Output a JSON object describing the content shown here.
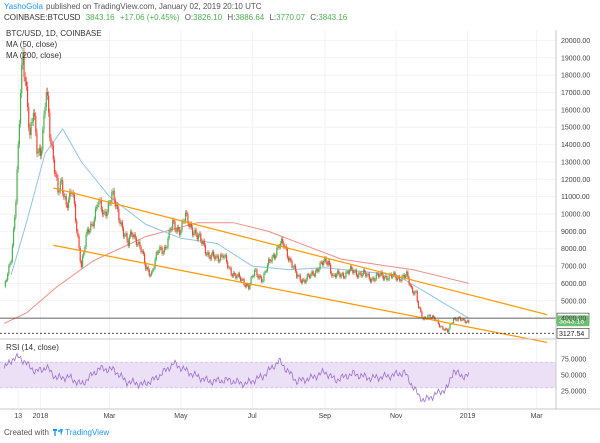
{
  "header": {
    "publisher": "YashoGola",
    "published_text": "published on TradingView.com, January 02, 2019 20:10 UTC",
    "symbol": "COINBASE:BTCUSD",
    "last": "3843.16",
    "change": "+17.06 (+0.45%)",
    "o_label": "O:",
    "o_val": "3826.10",
    "h_label": "H:",
    "h_val": "3886.64",
    "l_label": "L:",
    "l_val": "3770.07",
    "c_label": "C:",
    "c_val": "3843.16"
  },
  "legend": {
    "title": "BTC/USD, 1D, COINBASE",
    "ma50": "MA (50, close)",
    "ma200": "MA (200, close)",
    "rsi": "RSI (14, close)"
  },
  "footer": {
    "created_with": "Created with",
    "brand": "TradingView"
  },
  "colors": {
    "up": "#4caf50",
    "down": "#f44336",
    "ma50": "#90c5e8",
    "ma200": "#f28b82",
    "channel": "#ff9800",
    "rsi_line": "#9c6fce",
    "rsi_band": "#ece0f6",
    "price_marker": "#6cbf70",
    "level_line": "#333333"
  },
  "chart_data": {
    "type": "candlestick",
    "title": "BTC/USD, 1D, COINBASE",
    "x_ticks": [
      "13",
      "2018",
      "Mar",
      "May",
      "Jul",
      "Sep",
      "Nov",
      "2019",
      "Mar"
    ],
    "y_ticks": [
      4000,
      5000,
      6000,
      7000,
      8000,
      9000,
      10000,
      11000,
      12000,
      13000,
      14000,
      15000,
      16000,
      17000,
      18000,
      19000,
      20000
    ],
    "y_range": [
      2800,
      20600
    ],
    "price_markers": [
      {
        "label": "4002.88",
        "value": 4002.88,
        "style": "dark"
      },
      {
        "label": "3843.16",
        "value": 3843.16,
        "style": "green"
      },
      {
        "label": "3127.54",
        "value": 3127.54,
        "style": "dark"
      }
    ],
    "close_path": [
      [
        "2017-12-01",
        5600
      ],
      [
        "2017-12-04",
        6600
      ],
      [
        "2017-12-07",
        7600
      ],
      [
        "2017-12-09",
        9000
      ],
      [
        "2017-12-11",
        10800
      ],
      [
        "2017-12-13",
        13500
      ],
      [
        "2017-12-15",
        17000
      ],
      [
        "2017-12-17",
        19400
      ],
      [
        "2017-12-19",
        18000
      ],
      [
        "2017-12-21",
        16400
      ],
      [
        "2017-12-23",
        14200
      ],
      [
        "2017-12-26",
        15800
      ],
      [
        "2017-12-29",
        14000
      ],
      [
        "2018-01-01",
        13600
      ],
      [
        "2018-01-04",
        15200
      ],
      [
        "2018-01-06",
        17000
      ],
      [
        "2018-01-09",
        14800
      ],
      [
        "2018-01-12",
        13400
      ],
      [
        "2018-01-16",
        11200
      ],
      [
        "2018-01-19",
        11600
      ],
      [
        "2018-01-23",
        10700
      ],
      [
        "2018-01-28",
        11300
      ],
      [
        "2018-02-01",
        9100
      ],
      [
        "2018-02-05",
        7100
      ],
      [
        "2018-02-09",
        8600
      ],
      [
        "2018-02-14",
        9400
      ],
      [
        "2018-02-19",
        10800
      ],
      [
        "2018-02-24",
        9800
      ],
      [
        "2018-03-03",
        11200
      ],
      [
        "2018-03-07",
        10200
      ],
      [
        "2018-03-12",
        9300
      ],
      [
        "2018-03-17",
        8200
      ],
      [
        "2018-03-20",
        8900
      ],
      [
        "2018-03-24",
        8600
      ],
      [
        "2018-03-28",
        7900
      ],
      [
        "2018-04-01",
        6900
      ],
      [
        "2018-04-06",
        6600
      ],
      [
        "2018-04-12",
        7900
      ],
      [
        "2018-04-18",
        8100
      ],
      [
        "2018-04-24",
        9400
      ],
      [
        "2018-05-01",
        9100
      ],
      [
        "2018-05-05",
        9800
      ],
      [
        "2018-05-10",
        9300
      ],
      [
        "2018-05-15",
        8600
      ],
      [
        "2018-05-20",
        8400
      ],
      [
        "2018-05-25",
        7500
      ],
      [
        "2018-05-31",
        7500
      ],
      [
        "2018-06-06",
        7650
      ],
      [
        "2018-06-11",
        6800
      ],
      [
        "2018-06-17",
        6500
      ],
      [
        "2018-06-22",
        6100
      ],
      [
        "2018-06-28",
        5900
      ],
      [
        "2018-07-03",
        6600
      ],
      [
        "2018-07-10",
        6300
      ],
      [
        "2018-07-17",
        7400
      ],
      [
        "2018-07-24",
        8200
      ],
      [
        "2018-07-28",
        8200
      ],
      [
        "2018-08-01",
        7600
      ],
      [
        "2018-08-08",
        6400
      ],
      [
        "2018-08-14",
        6200
      ],
      [
        "2018-08-20",
        6400
      ],
      [
        "2018-08-27",
        7000
      ],
      [
        "2018-09-04",
        7300
      ],
      [
        "2018-09-08",
        6400
      ],
      [
        "2018-09-15",
        6500
      ],
      [
        "2018-09-22",
        6700
      ],
      [
        "2018-10-01",
        6600
      ],
      [
        "2018-10-11",
        6300
      ],
      [
        "2018-10-20",
        6450
      ],
      [
        "2018-11-01",
        6350
      ],
      [
        "2018-11-10",
        6400
      ],
      [
        "2018-11-14",
        5700
      ],
      [
        "2018-11-18",
        5500
      ],
      [
        "2018-11-20",
        4600
      ],
      [
        "2018-11-24",
        3900
      ],
      [
        "2018-11-28",
        4200
      ],
      [
        "2018-12-04",
        3900
      ],
      [
        "2018-12-10",
        3500
      ],
      [
        "2018-12-15",
        3200
      ],
      [
        "2018-12-20",
        4000
      ],
      [
        "2018-12-24",
        4000
      ],
      [
        "2018-12-28",
        3800
      ],
      [
        "2019-01-02",
        3843
      ]
    ],
    "series": [
      {
        "name": "MA (50, close)",
        "points": [
          [
            "2017-12-07",
            6500
          ],
          [
            "2017-12-20",
            9500
          ],
          [
            "2018-01-05",
            13500
          ],
          [
            "2018-01-20",
            14900
          ],
          [
            "2018-02-05",
            13000
          ],
          [
            "2018-03-01",
            11000
          ],
          [
            "2018-04-01",
            9400
          ],
          [
            "2018-05-01",
            8600
          ],
          [
            "2018-06-01",
            8300
          ],
          [
            "2018-07-01",
            7000
          ],
          [
            "2018-08-01",
            6800
          ],
          [
            "2018-09-01",
            6900
          ],
          [
            "2018-10-01",
            6700
          ],
          [
            "2018-11-01",
            6500
          ],
          [
            "2018-12-01",
            5300
          ],
          [
            "2019-01-02",
            4000
          ]
        ]
      },
      {
        "name": "MA (200, close)",
        "points": [
          [
            "2017-12-01",
            3700
          ],
          [
            "2017-12-20",
            4300
          ],
          [
            "2018-01-15",
            5800
          ],
          [
            "2018-02-15",
            7300
          ],
          [
            "2018-04-01",
            8700
          ],
          [
            "2018-05-15",
            9500
          ],
          [
            "2018-06-15",
            9500
          ],
          [
            "2018-07-15",
            9000
          ],
          [
            "2018-08-15",
            8200
          ],
          [
            "2018-09-15",
            7400
          ],
          [
            "2018-10-15",
            7100
          ],
          [
            "2018-11-15",
            6800
          ],
          [
            "2018-12-15",
            6300
          ],
          [
            "2019-01-02",
            6000
          ]
        ]
      }
    ],
    "trendlines": [
      {
        "from": [
          "2018-01-12",
          11500
        ],
        "to": [
          "2019-03-10",
          4200
        ]
      },
      {
        "from": [
          "2018-01-12",
          8200
        ],
        "to": [
          "2019-03-10",
          2600
        ]
      }
    ],
    "rsi": {
      "label": "RSI (14, close)",
      "y_ticks": [
        25,
        50,
        75
      ],
      "band": [
        30,
        70
      ],
      "values": [
        [
          "2017-12-01",
          60
        ],
        [
          "2017-12-08",
          75
        ],
        [
          "2017-12-14",
          78
        ],
        [
          "2017-12-20",
          68
        ],
        [
          "2017-12-28",
          55
        ],
        [
          "2018-01-06",
          62
        ],
        [
          "2018-01-15",
          45
        ],
        [
          "2018-01-25",
          47
        ],
        [
          "2018-02-05",
          35
        ],
        [
          "2018-02-20",
          60
        ],
        [
          "2018-03-05",
          58
        ],
        [
          "2018-03-15",
          40
        ],
        [
          "2018-03-30",
          35
        ],
        [
          "2018-04-10",
          45
        ],
        [
          "2018-04-25",
          68
        ],
        [
          "2018-05-10",
          52
        ],
        [
          "2018-05-25",
          40
        ],
        [
          "2018-06-10",
          42
        ],
        [
          "2018-06-25",
          36
        ],
        [
          "2018-07-10",
          48
        ],
        [
          "2018-07-24",
          72
        ],
        [
          "2018-08-08",
          40
        ],
        [
          "2018-08-20",
          45
        ],
        [
          "2018-09-01",
          55
        ],
        [
          "2018-09-10",
          42
        ],
        [
          "2018-09-25",
          52
        ],
        [
          "2018-10-10",
          45
        ],
        [
          "2018-10-25",
          48
        ],
        [
          "2018-11-08",
          54
        ],
        [
          "2018-11-20",
          18
        ],
        [
          "2018-11-25",
          10
        ],
        [
          "2018-12-05",
          20
        ],
        [
          "2018-12-15",
          30
        ],
        [
          "2018-12-20",
          58
        ],
        [
          "2018-12-26",
          48
        ],
        [
          "2019-01-02",
          50
        ]
      ]
    }
  }
}
